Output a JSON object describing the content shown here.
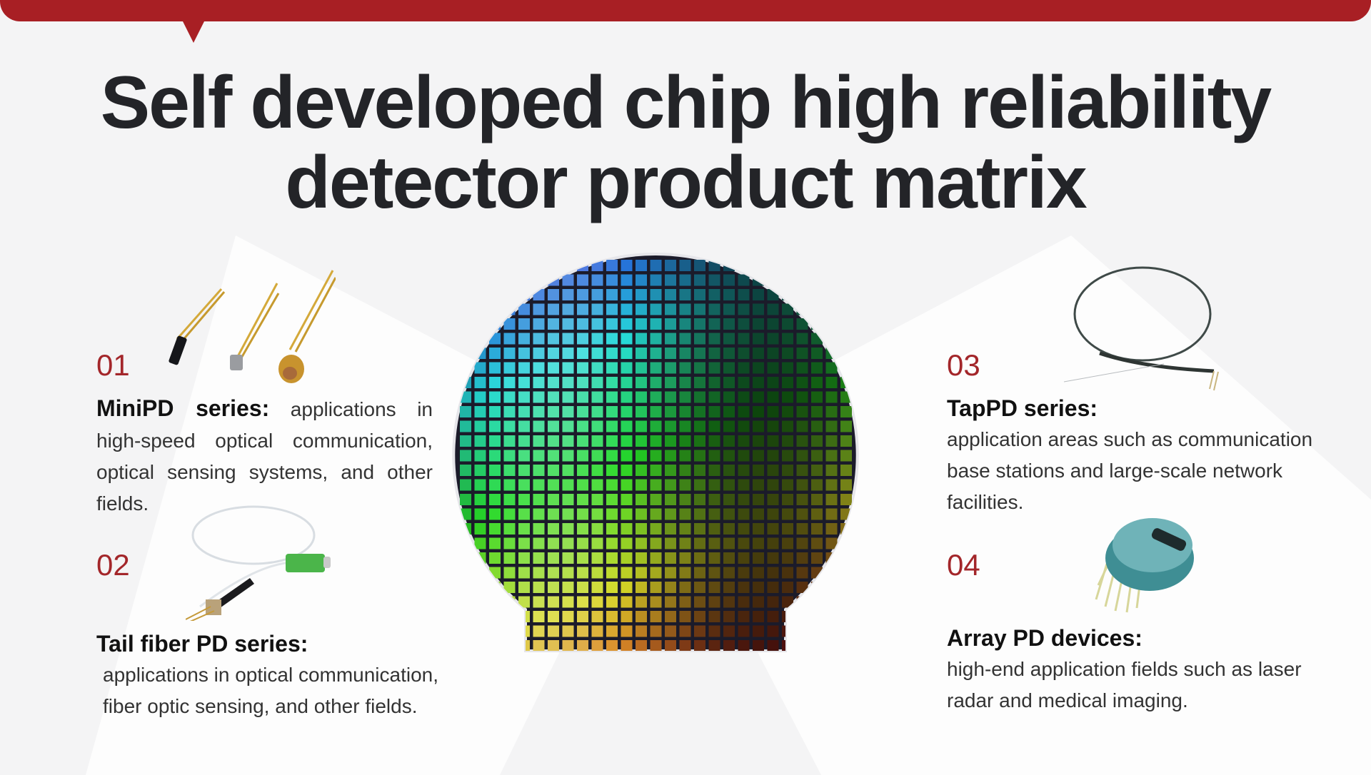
{
  "title": {
    "line1": "Self developed chip high reliability",
    "line2": "detector product matrix"
  },
  "colors": {
    "accent": "#a81f24",
    "background": "#f4f4f5",
    "text": "#232428"
  },
  "products": [
    {
      "number": "01",
      "name": "MiniPD series:",
      "description": "applications in high-speed optical communication, optical sensing systems, and other fields.",
      "image": "to-can-photodiodes"
    },
    {
      "number": "02",
      "name": "Tail fiber PD series:",
      "description": "applications in optical communication, fiber optic sensing, and other fields.",
      "image": "pigtailed-photodiode"
    },
    {
      "number": "03",
      "name": "TapPD series:",
      "description": "application areas such as communication base stations and large-scale network facilities.",
      "image": "tap-photodiode-fiber"
    },
    {
      "number": "04",
      "name": "Array PD devices:",
      "description": "high-end application fields such as laser radar and medical imaging.",
      "image": "array-pd-package"
    }
  ],
  "center_image": "semiconductor-wafer"
}
